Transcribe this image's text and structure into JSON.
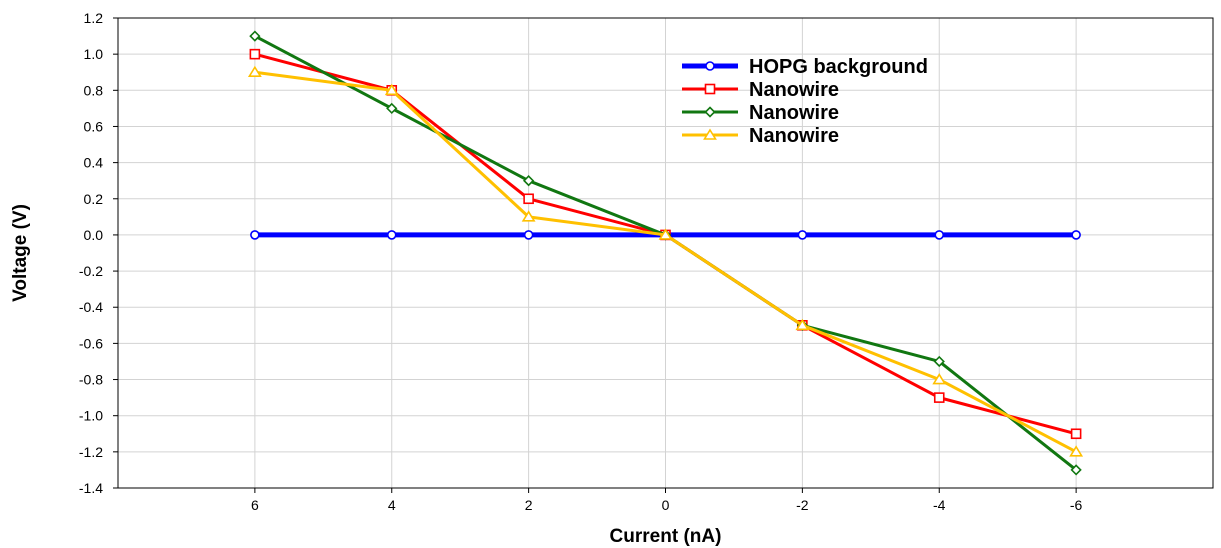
{
  "chart_data": {
    "type": "line",
    "title": "",
    "xlabel": "Current (nA)",
    "ylabel": "Voltage (V)",
    "x": [
      6,
      4,
      2,
      0,
      -2,
      -4,
      -6
    ],
    "x_tick_labels": [
      "6",
      "4",
      "2",
      "0",
      "-2",
      "-4",
      "-6"
    ],
    "xlim": [
      8,
      -8
    ],
    "x_reversed": true,
    "ylim": [
      -1.4,
      1.2
    ],
    "y_tick_labels": [
      "1.2",
      "1.0",
      "0.8",
      "0.6",
      "0.4",
      "0.2",
      "0.0",
      "-0.2",
      "-0.4",
      "-0.6",
      "-0.8",
      "-1.0",
      "-1.2",
      "-1.4"
    ],
    "grid": true,
    "legend_position": "top-right",
    "series": [
      {
        "name": "HOPG background",
        "color": "#0000ff",
        "marker": "circle",
        "values": [
          0.0,
          0.0,
          0.0,
          0.0,
          0.0,
          0.0,
          0.0
        ]
      },
      {
        "name": "Nanowire",
        "color": "#ff0000",
        "marker": "square",
        "values": [
          1.0,
          0.8,
          0.2,
          0.0,
          -0.5,
          -0.9,
          -1.1
        ]
      },
      {
        "name": "Nanowire",
        "color": "#117711",
        "marker": "diamond",
        "values": [
          1.1,
          0.7,
          0.3,
          0.0,
          -0.5,
          -0.7,
          -1.3
        ]
      },
      {
        "name": "Nanowire",
        "color": "#ffc000",
        "marker": "triangle",
        "values": [
          0.9,
          0.8,
          0.1,
          0.0,
          -0.5,
          -0.8,
          -1.2
        ]
      }
    ]
  }
}
